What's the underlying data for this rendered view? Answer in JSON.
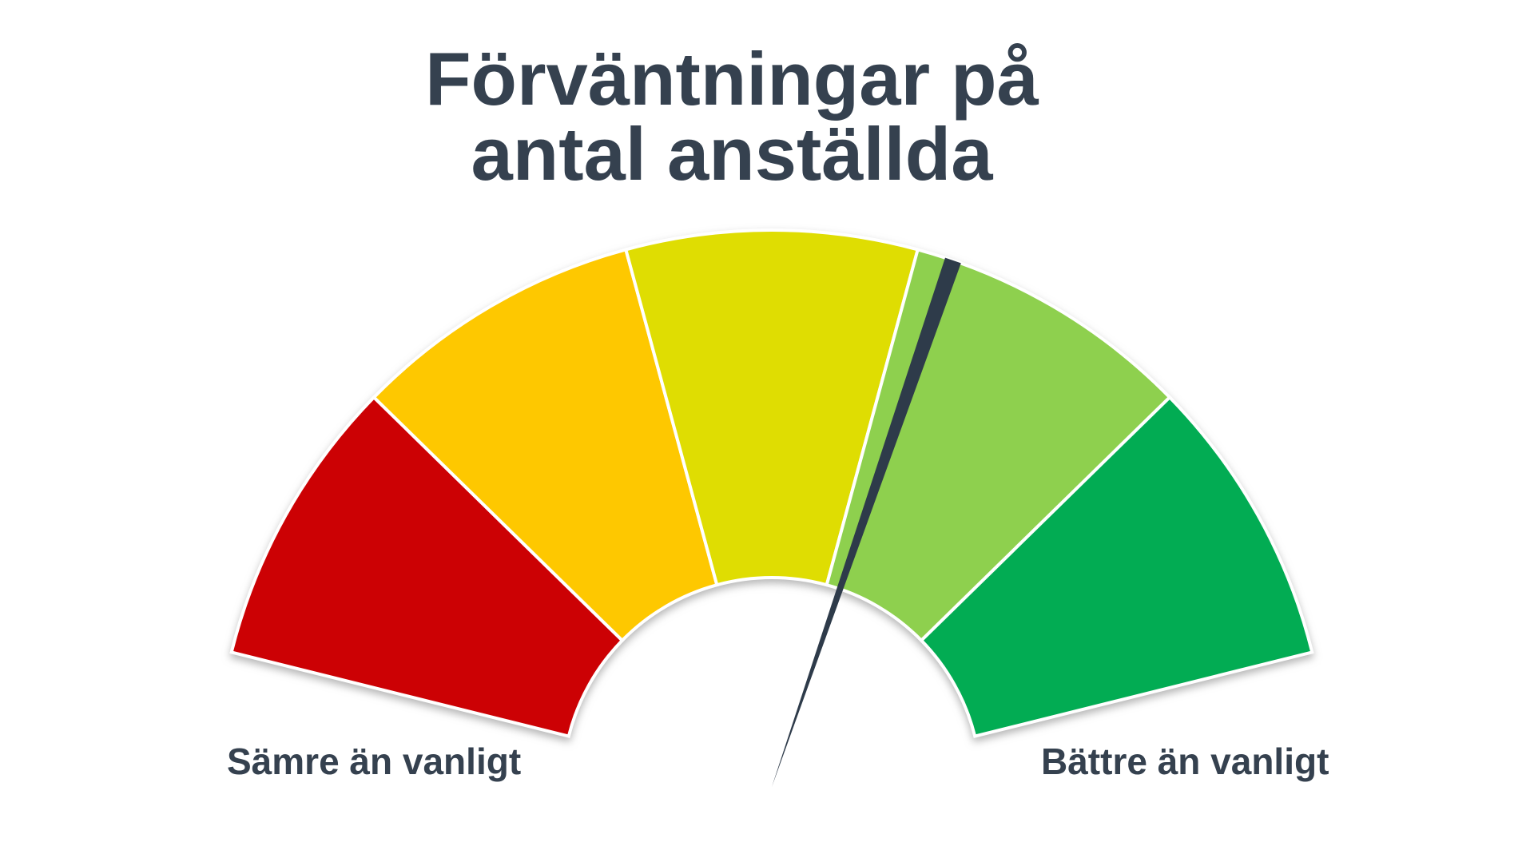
{
  "title": {
    "text": "Förväntningar på antal anställda",
    "line1": "Förväntningar på",
    "line2": "antal anställda"
  },
  "labels": {
    "left": "Sämre än vanligt",
    "right": "Bättre än vanligt"
  },
  "colors": {
    "title_text": "#35414f",
    "axis_label_text": "#35414f",
    "needle": "#2e3b4a",
    "segment_border": "#ffffff",
    "background": "#ffffff"
  },
  "chart_data": {
    "type": "gauge",
    "title": "Förväntningar på antal anställda",
    "min_label": "Sämre än vanligt",
    "max_label": "Bättre än vanligt",
    "start_angle_deg": -76,
    "end_angle_deg": 76,
    "span_degrees": 152,
    "segment_count": 5,
    "segments": [
      {
        "position": 1,
        "color": "#cc0104"
      },
      {
        "position": 2,
        "color": "#fec800"
      },
      {
        "position": 3,
        "color": "#dfdd02"
      },
      {
        "position": 4,
        "color": "#8ed04e"
      },
      {
        "position": 5,
        "color": "#02ac53"
      }
    ],
    "needle_angle_deg": 19,
    "needle_value_fraction": 0.625,
    "legend": false,
    "grid": false
  }
}
